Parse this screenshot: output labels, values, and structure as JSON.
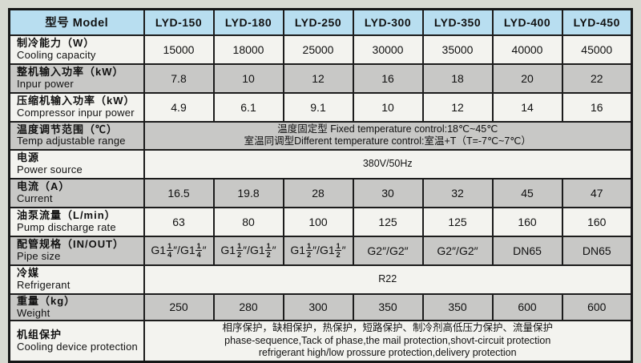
{
  "colors": {
    "page_background": "#d7d9d1",
    "header_background": "#b8def0",
    "row_gray": "#c8c8c6",
    "row_white": "#f3f3ef",
    "border": "#1c1c1c"
  },
  "table": {
    "model_header": "型号 Model",
    "models": [
      "LYD-150",
      "LYD-180",
      "LYD-250",
      "LYD-300",
      "LYD-350",
      "LYD-400",
      "LYD-450"
    ],
    "rows": [
      {
        "label_zh": "制冷能力（W）",
        "label_en": "Cooling capacity",
        "values": [
          "15000",
          "18000",
          "25000",
          "30000",
          "35000",
          "40000",
          "45000"
        ]
      },
      {
        "label_zh": "整机输入功率（kW）",
        "label_en": "Inpur power",
        "values": [
          "7.8",
          "10",
          "12",
          "16",
          "18",
          "20",
          "22"
        ]
      },
      {
        "label_zh": "压缩机输入功率（kW）",
        "label_en": "Compressor inpur power",
        "values": [
          "4.9",
          "6.1",
          "9.1",
          "10",
          "12",
          "14",
          "16"
        ]
      },
      {
        "label_zh": "温度调节范围（℃）",
        "label_en": "Temp adjustable range",
        "span_lines": [
          "温度固定型 Fixed temperature control:18℃~45℃",
          "室温同调型Different temperature control:室温+T（T=-7℃~7℃）"
        ]
      },
      {
        "label_zh": "电源",
        "label_en": "Power source",
        "span_lines": [
          "380V/50Hz"
        ]
      },
      {
        "label_zh": "电流（A）",
        "label_en": "Current",
        "values": [
          "16.5",
          "19.8",
          "28",
          "30",
          "32",
          "45",
          "47"
        ]
      },
      {
        "label_zh": "油泵流量（L/min）",
        "label_en": "Pump discharge rate",
        "values": [
          "63",
          "80",
          "100",
          "125",
          "125",
          "160",
          "160"
        ]
      },
      {
        "label_zh": "配管规格（IN/OUT）",
        "label_en": "Pipe size",
        "values": [
          "G1[1/4]″/G1[1/4]″",
          "G1[1/2]″/G1[1/2]″",
          "G1[1/2]″/G1[1/2]″",
          "G2″/G2″",
          "G2″/G2″",
          "DN65",
          "DN65"
        ]
      },
      {
        "label_zh": "冷媒",
        "label_en": "Refrigerant",
        "span_lines": [
          "R22"
        ]
      },
      {
        "label_zh": "重量（kg）",
        "label_en": "Weight",
        "values": [
          "250",
          "280",
          "300",
          "350",
          "350",
          "600",
          "600"
        ]
      },
      {
        "label_zh": "机组保护",
        "label_en": "Cooling device protection",
        "span_lines": [
          "相序保护，缺相保护，热保护，短路保护、制冷剂高低压力保护、流量保护",
          "phase-sequence,Tack of phase,the mail protection,shovt-circuit protection",
          "refrigerant high/low prossure protection,delivery protection"
        ]
      }
    ]
  }
}
